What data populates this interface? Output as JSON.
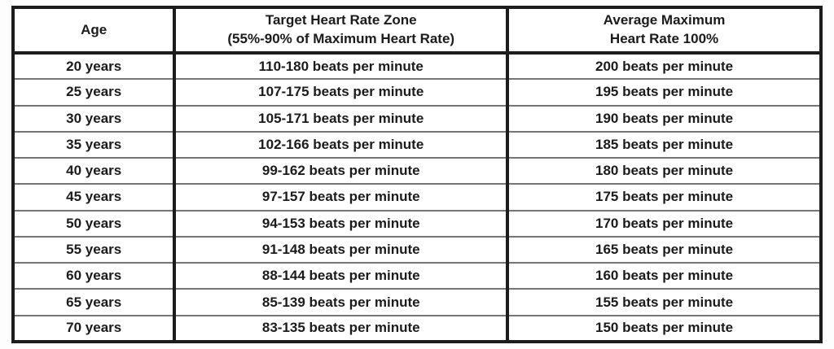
{
  "table": {
    "headers": {
      "age": "Age",
      "target_line1": "Target Heart Rate Zone",
      "target_line2": "(55%-90% of Maximum Heart Rate)",
      "max_line1": "Average Maximum",
      "max_line2": "Heart Rate 100%"
    },
    "rows": [
      {
        "age": "20 years",
        "target": "110-180 beats per minute",
        "max": "200 beats per minute"
      },
      {
        "age": "25 years",
        "target": "107-175 beats per minute",
        "max": "195 beats per minute"
      },
      {
        "age": "30 years",
        "target": "105-171 beats per minute",
        "max": "190 beats per minute"
      },
      {
        "age": "35 years",
        "target": "102-166 beats per minute",
        "max": "185 beats per minute"
      },
      {
        "age": "40 years",
        "target": "99-162 beats per minute",
        "max": "180 beats per minute"
      },
      {
        "age": "45 years",
        "target": "97-157 beats per minute",
        "max": "175 beats per minute"
      },
      {
        "age": "50 years",
        "target": "94-153 beats per minute",
        "max": "170 beats per minute"
      },
      {
        "age": "55 years",
        "target": "91-148 beats per minute",
        "max": "165 beats per minute"
      },
      {
        "age": "60 years",
        "target": "88-144 beats per minute",
        "max": "160 beats per minute"
      },
      {
        "age": "65 years",
        "target": "85-139 beats per minute",
        "max": "155 beats per minute"
      },
      {
        "age": "70 years",
        "target": "83-135 beats per minute",
        "max": "150 beats per minute"
      }
    ],
    "colors": {
      "border_strong": "#1c1c1c",
      "border_light": "#757575",
      "text": "#1b1b1b",
      "background": "#fdfdfd"
    }
  }
}
